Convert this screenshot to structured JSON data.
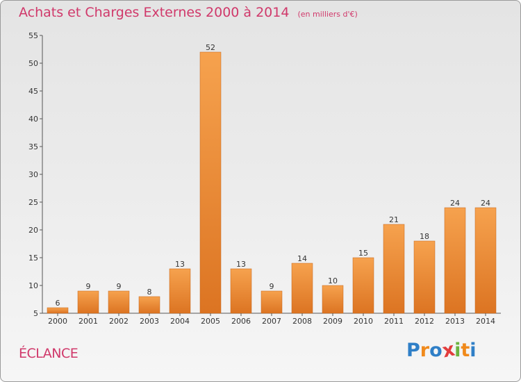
{
  "chart_data": {
    "type": "bar",
    "title": "Achats et Charges Externes 2000 à 2014",
    "subtitle": "(en milliers d'€)",
    "categories": [
      "2000",
      "2001",
      "2002",
      "2003",
      "2004",
      "2005",
      "2006",
      "2007",
      "2008",
      "2009",
      "2010",
      "2011",
      "2012",
      "2013",
      "2014"
    ],
    "values": [
      6,
      9,
      9,
      8,
      13,
      52,
      13,
      9,
      14,
      10,
      15,
      21,
      18,
      24,
      24
    ],
    "ylim": [
      5,
      55
    ],
    "yticks": [
      5,
      10,
      15,
      20,
      25,
      30,
      35,
      40,
      45,
      50,
      55
    ],
    "xlabel": "",
    "ylabel": "",
    "grid": false,
    "bar_colors": {
      "light": "#f6a24e",
      "dark": "#dc7422",
      "stroke": "#c4651a"
    }
  },
  "place_name": "ÉCLANCE",
  "logo": {
    "letters": [
      "P",
      "r",
      "o",
      "x",
      "i",
      "t",
      "i"
    ],
    "colors": [
      "#2f7fc7",
      "#f08a1c",
      "#2f7fc7",
      "#e23c3c",
      "#6cb33f",
      "#f08a1c",
      "#2f7fc7"
    ]
  }
}
